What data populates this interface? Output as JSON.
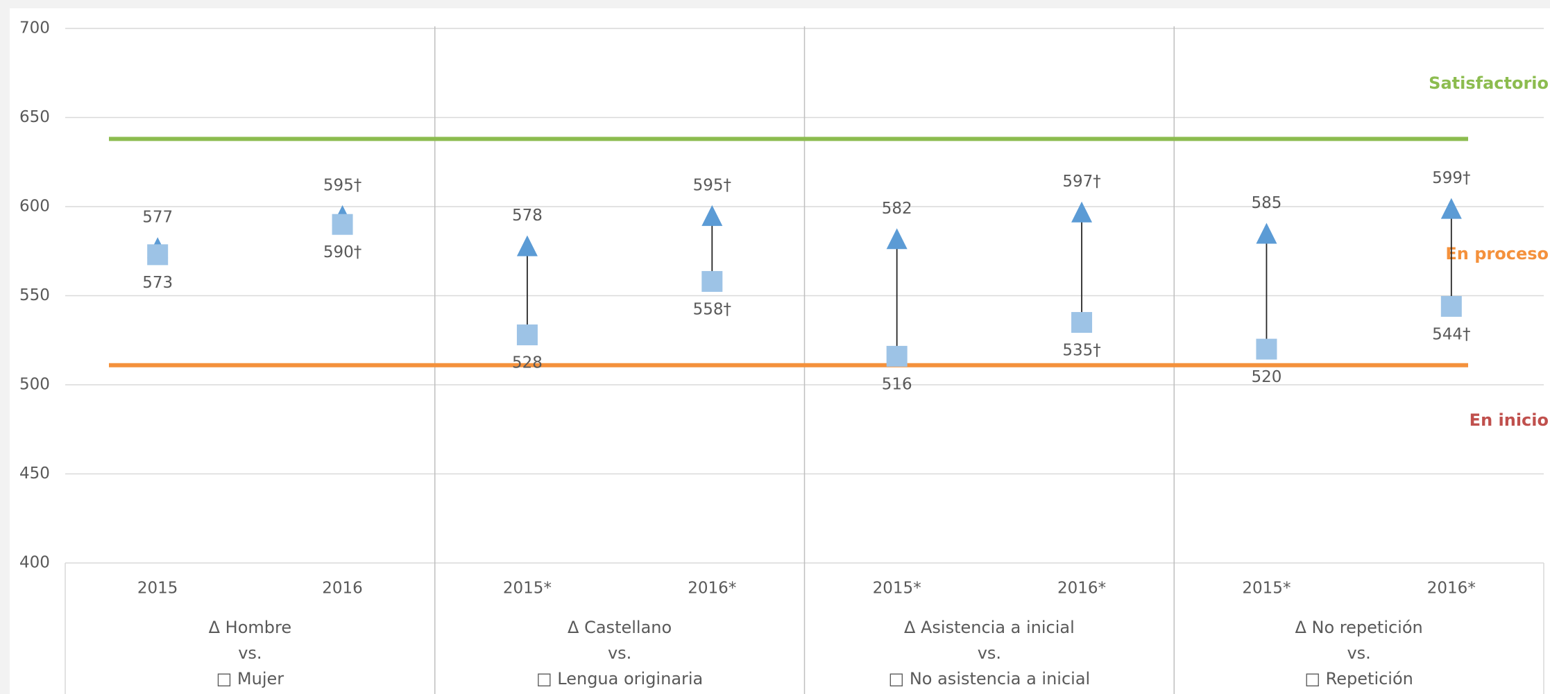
{
  "chart_data": {
    "type": "dumbbell",
    "categories": [
      "2015",
      "2016",
      "2015*",
      "2016*",
      "2015*",
      "2016*",
      "2015*",
      "2016*"
    ],
    "groups": [
      [
        "Δ Hombre",
        "vs.",
        "□ Mujer"
      ],
      [
        "Δ Castellano",
        "vs.",
        "□ Lengua originaria"
      ],
      [
        "Δ Asistencia a inicial",
        "vs.",
        "□ No asistencia a inicial"
      ],
      [
        "Δ No repetición",
        "vs.",
        "□ Repetición"
      ]
    ],
    "series": [
      {
        "marker": "triangle",
        "color": "#5b9bd5",
        "values": [
          577,
          595,
          578,
          595,
          582,
          597,
          585,
          599
        ],
        "value_labels": [
          "577",
          "595†",
          "578",
          "595†",
          "582",
          "597†",
          "585",
          "599†"
        ]
      },
      {
        "marker": "square",
        "color": "#9dc3e6",
        "values": [
          573,
          590,
          528,
          558,
          516,
          535,
          520,
          544
        ],
        "value_labels": [
          "573",
          "590†",
          "528",
          "558†",
          "516",
          "535†",
          "520",
          "544†"
        ]
      }
    ],
    "reference_lines": [
      {
        "value": 638,
        "color": "#8cbc4f"
      },
      {
        "value": 511,
        "color": "#f4913c"
      }
    ],
    "zones": [
      {
        "label": "Satisfactorio",
        "color": "#8cbc4f"
      },
      {
        "label": "En proceso",
        "color": "#f4913c"
      },
      {
        "label": "En inicio",
        "color": "#c0504d"
      }
    ],
    "ylim": [
      400,
      700
    ],
    "yticks": [
      400,
      450,
      500,
      550,
      600,
      650,
      700
    ],
    "grid": true
  }
}
